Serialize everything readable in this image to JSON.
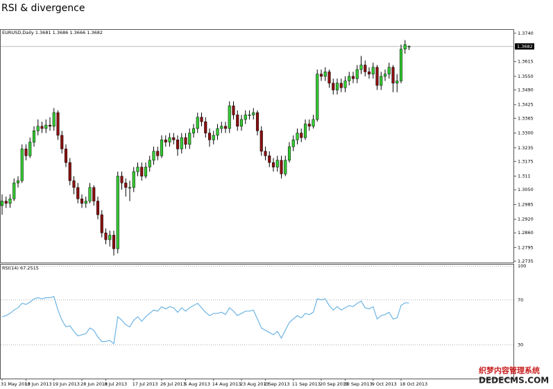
{
  "title": "RSI & divergence",
  "watermark": [
    "织梦内容管理系统",
    "DEDECMS.COM"
  ],
  "chart_data": [
    {
      "type": "candlestick",
      "header": "EURUSD,Daily  1.3681 1.3686 1.3666 1.3682",
      "categories": [
        "31 May 2013",
        null,
        null,
        null,
        null,
        null,
        "10 Jun 2013",
        null,
        null,
        null,
        null,
        null,
        null,
        "19 Jun 2013",
        null,
        null,
        null,
        null,
        null,
        null,
        "28 Jun 2013",
        null,
        null,
        null,
        null,
        null,
        "8 Jul 2013",
        null,
        null,
        null,
        null,
        null,
        null,
        "17 Jul 2013",
        null,
        null,
        null,
        null,
        null,
        null,
        "26 Jul 2013",
        null,
        null,
        null,
        null,
        null,
        "5 Aug 2013",
        null,
        null,
        null,
        null,
        null,
        null,
        "14 Aug 2013",
        null,
        null,
        null,
        null,
        null,
        null,
        "23 Aug 2013",
        null,
        null,
        null,
        null,
        null,
        "2 Sep 2013",
        null,
        null,
        null,
        null,
        null,
        null,
        "11 Sep 2013",
        null,
        null,
        null,
        null,
        null,
        null,
        "20 Sep 2013",
        null,
        null,
        null,
        null,
        null,
        "30 Sep 2013",
        null,
        null,
        null,
        null,
        null,
        null,
        "9 Oct 2013",
        null,
        null,
        null,
        null,
        null,
        null,
        "18 Oct 2013",
        null,
        null
      ],
      "open": [
        1.298,
        1.3,
        1.299,
        1.301,
        1.308,
        1.309,
        1.323,
        1.32,
        1.326,
        1.331,
        1.333,
        1.332,
        1.3335,
        1.333,
        1.339,
        1.329,
        1.323,
        1.317,
        1.309,
        1.306,
        1.301,
        1.299,
        1.3,
        1.306,
        1.3,
        1.294,
        1.286,
        1.283,
        1.285,
        1.279,
        1.311,
        1.308,
        1.306,
        1.306,
        1.313,
        1.315,
        1.311,
        1.315,
        1.318,
        1.322,
        1.32,
        1.327,
        1.326,
        1.328,
        1.327,
        1.323,
        1.328,
        1.325,
        1.33,
        1.332,
        1.337,
        1.335,
        1.33,
        1.327,
        1.329,
        1.332,
        1.333,
        1.332,
        1.342,
        1.338,
        1.333,
        1.336,
        1.338,
        1.338,
        1.339,
        1.331,
        1.322,
        1.32,
        1.317,
        1.315,
        1.318,
        1.312,
        1.318,
        1.324,
        1.327,
        1.33,
        1.328,
        1.334,
        1.333,
        1.336,
        1.356,
        1.355,
        1.357,
        1.352,
        1.349,
        1.352,
        1.35,
        1.353,
        1.355,
        1.354,
        1.358,
        1.36,
        1.357,
        1.356,
        1.359,
        1.351,
        1.355,
        1.356,
        1.359,
        1.352,
        1.353,
        1.367,
        1.3681
      ],
      "high": [
        1.303,
        1.302,
        1.303,
        1.31,
        1.311,
        1.325,
        1.325,
        1.328,
        1.333,
        1.336,
        1.335,
        1.336,
        1.337,
        1.341,
        1.34,
        1.331,
        1.325,
        1.319,
        1.311,
        1.308,
        1.303,
        1.302,
        1.308,
        1.307,
        1.302,
        1.296,
        1.288,
        1.287,
        1.287,
        1.313,
        1.313,
        1.31,
        1.309,
        1.315,
        1.317,
        1.317,
        1.317,
        1.32,
        1.324,
        1.324,
        1.329,
        1.329,
        1.33,
        1.33,
        1.329,
        1.33,
        1.33,
        1.332,
        1.334,
        1.339,
        1.339,
        1.337,
        1.332,
        1.331,
        1.334,
        1.335,
        1.335,
        1.344,
        1.344,
        1.34,
        1.338,
        1.34,
        1.34,
        1.341,
        1.34,
        1.333,
        1.324,
        1.322,
        1.319,
        1.32,
        1.32,
        1.32,
        1.326,
        1.329,
        1.332,
        1.332,
        1.336,
        1.336,
        1.338,
        1.358,
        1.358,
        1.359,
        1.358,
        1.354,
        1.354,
        1.354,
        1.355,
        1.357,
        1.357,
        1.36,
        1.364,
        1.362,
        1.359,
        1.361,
        1.36,
        1.357,
        1.358,
        1.361,
        1.36,
        1.356,
        1.369,
        1.371,
        1.3686
      ],
      "low": [
        1.294,
        1.297,
        1.297,
        1.3,
        1.306,
        1.308,
        1.318,
        1.319,
        1.324,
        1.329,
        1.33,
        1.33,
        1.331,
        1.331,
        1.327,
        1.321,
        1.315,
        1.307,
        1.303,
        1.299,
        1.297,
        1.297,
        1.299,
        1.298,
        1.292,
        1.284,
        1.281,
        1.28,
        1.276,
        1.277,
        1.305,
        1.302,
        1.3,
        1.304,
        1.311,
        1.309,
        1.31,
        1.313,
        1.316,
        1.318,
        1.319,
        1.324,
        1.324,
        1.325,
        1.32,
        1.321,
        1.323,
        1.323,
        1.328,
        1.33,
        1.333,
        1.328,
        1.324,
        1.325,
        1.327,
        1.33,
        1.33,
        1.33,
        1.336,
        1.331,
        1.331,
        1.334,
        1.336,
        1.336,
        1.329,
        1.32,
        1.318,
        1.315,
        1.313,
        1.313,
        1.31,
        1.311,
        1.317,
        1.322,
        1.325,
        1.326,
        1.327,
        1.331,
        1.332,
        1.335,
        1.353,
        1.353,
        1.35,
        1.347,
        1.347,
        1.348,
        1.348,
        1.351,
        1.352,
        1.352,
        1.356,
        1.355,
        1.354,
        1.354,
        1.349,
        1.349,
        1.353,
        1.354,
        1.348,
        1.348,
        1.352,
        1.365,
        1.3666
      ],
      "close": [
        1.3,
        1.299,
        1.301,
        1.308,
        1.309,
        1.323,
        1.32,
        1.326,
        1.331,
        1.333,
        1.332,
        1.3335,
        1.333,
        1.339,
        1.329,
        1.323,
        1.317,
        1.309,
        1.306,
        1.301,
        1.299,
        1.3,
        1.306,
        1.3,
        1.294,
        1.286,
        1.283,
        1.285,
        1.279,
        1.311,
        1.308,
        1.306,
        1.306,
        1.313,
        1.315,
        1.311,
        1.315,
        1.318,
        1.322,
        1.32,
        1.327,
        1.326,
        1.328,
        1.327,
        1.323,
        1.328,
        1.325,
        1.33,
        1.332,
        1.337,
        1.335,
        1.33,
        1.327,
        1.329,
        1.332,
        1.333,
        1.332,
        1.342,
        1.338,
        1.333,
        1.336,
        1.338,
        1.338,
        1.339,
        1.331,
        1.322,
        1.32,
        1.317,
        1.315,
        1.318,
        1.312,
        1.318,
        1.324,
        1.327,
        1.33,
        1.328,
        1.334,
        1.333,
        1.336,
        1.356,
        1.355,
        1.357,
        1.352,
        1.349,
        1.352,
        1.35,
        1.353,
        1.355,
        1.354,
        1.358,
        1.36,
        1.357,
        1.356,
        1.359,
        1.351,
        1.355,
        1.356,
        1.359,
        1.352,
        1.353,
        1.367,
        1.369,
        1.3682
      ],
      "up_color": "#33cc33",
      "down_color": "#8b1010",
      "last_price": 1.3682,
      "ylim": [
        1.2729,
        1.3758
      ],
      "yticks": [
        {
          "value": 1.374,
          "label": "1.3740"
        },
        1.3615,
        {
          "value": 1.355,
          "label": "1.3550"
        },
        {
          "value": 1.349,
          "label": "1.3490"
        },
        1.3425,
        1.3365,
        {
          "value": 1.33,
          "label": "1.3300"
        },
        1.3235,
        1.3175,
        1.311,
        {
          "value": 1.305,
          "label": "1.3050"
        },
        1.2985,
        {
          "value": 1.292,
          "label": "1.2920"
        },
        {
          "value": 1.286,
          "label": "1.2860"
        },
        1.2795,
        1.2735
      ]
    },
    {
      "type": "line",
      "label": "RSI(14) 67.2515",
      "color": "#6cb4e4",
      "values": [
        55,
        56,
        58,
        61,
        63,
        67,
        66,
        68,
        71,
        72,
        71,
        72,
        72,
        73,
        61,
        52,
        46,
        47,
        42,
        38,
        39,
        40,
        45,
        43,
        37,
        33,
        33,
        34,
        31,
        55,
        52,
        48,
        46,
        52,
        55,
        51,
        55,
        58,
        61,
        60,
        64,
        62,
        64,
        63,
        59,
        63,
        60,
        63,
        65,
        67,
        63,
        59,
        56,
        58,
        58,
        59,
        57,
        63,
        60,
        56,
        58,
        60,
        60,
        61,
        53,
        45,
        43,
        41,
        39,
        42,
        36,
        43,
        50,
        53,
        56,
        54,
        58,
        57,
        59,
        71,
        70,
        71,
        65,
        61,
        64,
        61,
        63,
        65,
        64,
        67,
        69,
        63,
        62,
        64,
        53,
        56,
        57,
        59,
        53,
        54,
        65,
        67.5,
        67.2515
      ],
      "ylim": [
        0,
        102
      ],
      "yticks": [
        30,
        70,
        100
      ],
      "grid": true
    }
  ]
}
